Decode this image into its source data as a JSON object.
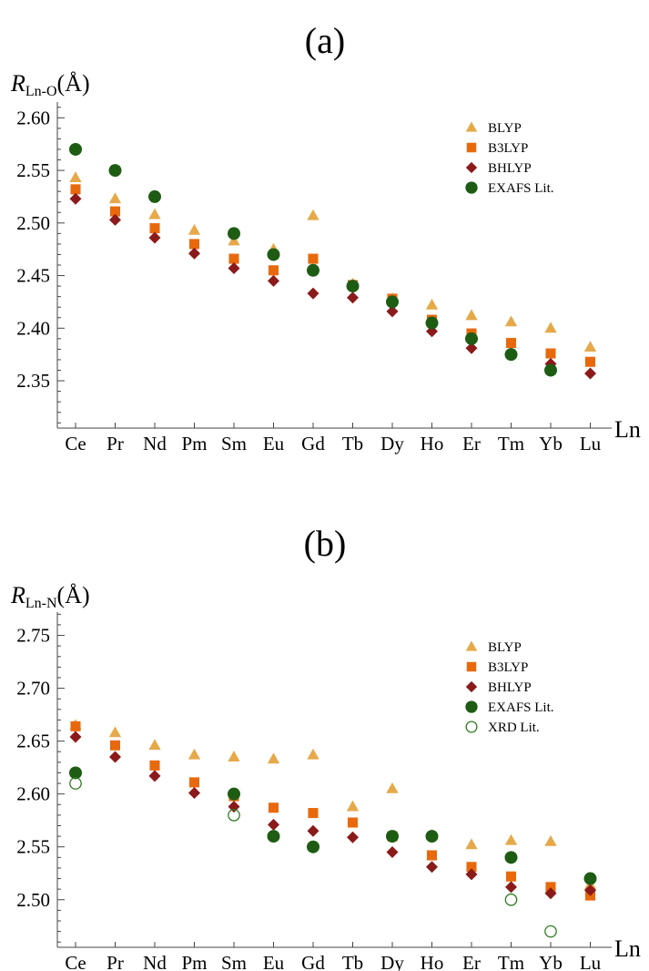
{
  "chart_data": [
    {
      "type": "scatter",
      "title": "(a)",
      "ylabel_main": "R",
      "ylabel_sub": "Ln-O",
      "ylabel_unit": "(Å)",
      "xlabel": "Ln",
      "categories": [
        "Ce",
        "Pr",
        "Nd",
        "Pm",
        "Sm",
        "Eu",
        "Gd",
        "Tb",
        "Dy",
        "Ho",
        "Er",
        "Tm",
        "Yb",
        "Lu"
      ],
      "ylim": [
        2.305,
        2.615
      ],
      "yticks": [
        2.35,
        2.4,
        2.45,
        2.5,
        2.55,
        2.6
      ],
      "ytick_labels": [
        "2.35",
        "2.40",
        "2.45",
        "2.50",
        "2.55",
        "2.60"
      ],
      "legend_position": "top-right",
      "series": [
        {
          "name": "BLYP",
          "marker": "triangle",
          "color": "#e6a94a",
          "values": [
            2.543,
            2.523,
            2.508,
            2.493,
            2.483,
            2.475,
            2.507,
            2.442,
            2.428,
            2.422,
            2.412,
            2.406,
            2.4,
            2.382
          ]
        },
        {
          "name": "B3LYP",
          "marker": "square",
          "color": "#e8690c",
          "values": [
            2.532,
            2.511,
            2.495,
            2.48,
            2.466,
            2.455,
            2.466,
            2.441,
            2.428,
            2.408,
            2.395,
            2.386,
            2.376,
            2.368
          ]
        },
        {
          "name": "BHLYP",
          "marker": "diamond",
          "color": "#8b1a1a",
          "values": [
            2.523,
            2.503,
            2.486,
            2.471,
            2.457,
            2.445,
            2.433,
            2.429,
            2.416,
            2.397,
            2.381,
            2.376,
            2.366,
            2.357
          ]
        },
        {
          "name": "EXAFS Lit.",
          "marker": "circle",
          "color": "#1e5c14",
          "values": [
            2.57,
            2.55,
            2.525,
            null,
            2.49,
            2.47,
            2.455,
            2.44,
            2.425,
            2.405,
            2.39,
            2.375,
            2.36,
            null
          ]
        }
      ]
    },
    {
      "type": "scatter",
      "title": "(b)",
      "ylabel_main": "R",
      "ylabel_sub": "Ln-N",
      "ylabel_unit": "(Å)",
      "xlabel": "Ln",
      "categories": [
        "Ce",
        "Pr",
        "Nd",
        "Pm",
        "Sm",
        "Eu",
        "Gd",
        "Tb",
        "Dy",
        "Ho",
        "Er",
        "Tm",
        "Yb",
        "Lu"
      ],
      "ylim": [
        2.455,
        2.772
      ],
      "yticks": [
        2.5,
        2.55,
        2.6,
        2.65,
        2.7,
        2.75
      ],
      "ytick_labels": [
        "2.50",
        "2.55",
        "2.60",
        "2.65",
        "2.70",
        "2.75"
      ],
      "legend_position": "top-right",
      "series": [
        {
          "name": "BLYP",
          "marker": "triangle",
          "color": "#e6a94a",
          "values": [
            2.665,
            2.658,
            2.646,
            2.637,
            2.635,
            2.633,
            2.637,
            2.588,
            2.605,
            2.561,
            2.552,
            2.556,
            2.555,
            2.514
          ]
        },
        {
          "name": "B3LYP",
          "marker": "square",
          "color": "#e8690c",
          "values": [
            2.664,
            2.646,
            2.627,
            2.611,
            2.598,
            2.587,
            2.582,
            2.573,
            2.56,
            2.542,
            2.531,
            2.522,
            2.512,
            2.504
          ]
        },
        {
          "name": "BHLYP",
          "marker": "diamond",
          "color": "#8b1a1a",
          "values": [
            2.654,
            2.635,
            2.617,
            2.601,
            2.588,
            2.571,
            2.565,
            2.559,
            2.545,
            2.531,
            2.524,
            2.512,
            2.506,
            2.509
          ]
        },
        {
          "name": "EXAFS Lit.",
          "marker": "circle",
          "color": "#1e5c14",
          "values": [
            2.62,
            null,
            null,
            null,
            2.6,
            2.56,
            2.55,
            null,
            2.56,
            2.56,
            null,
            2.54,
            null,
            2.52
          ]
        },
        {
          "name": "XRD Lit.",
          "marker": "open-circle",
          "color": "#2e7a22",
          "values": [
            2.61,
            null,
            null,
            null,
            2.58,
            null,
            null,
            null,
            null,
            null,
            null,
            2.5,
            2.47,
            null
          ]
        }
      ]
    }
  ]
}
